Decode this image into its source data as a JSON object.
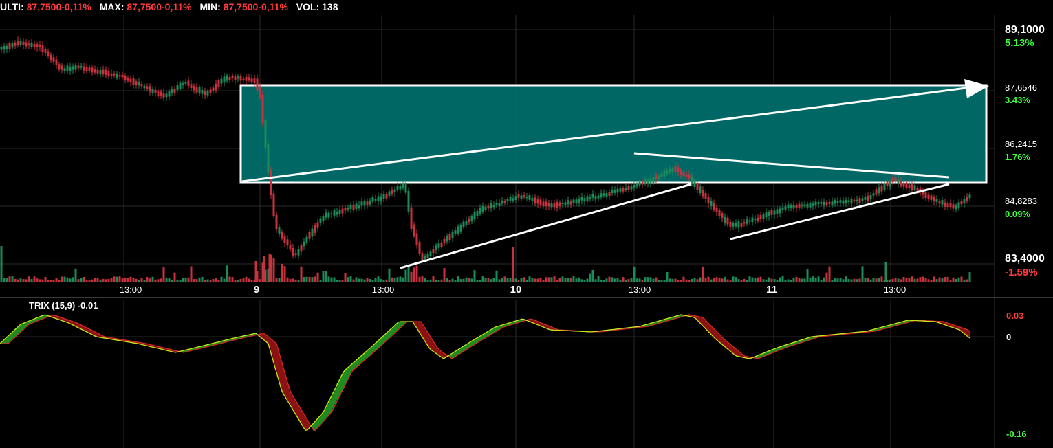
{
  "header": {
    "items": [
      {
        "label": "ULTI:",
        "value": "87,7500-0,11%"
      },
      {
        "label": "MAX:",
        "value": "87,7500-0,11%"
      },
      {
        "label": "MIN:",
        "value": "87,7500-0,11%"
      },
      {
        "label": "VOL:",
        "value": "138"
      }
    ]
  },
  "price_axis": [
    {
      "price": "89,1000",
      "pct": "5.13%",
      "pct_color": "#3cff3c",
      "emph": true
    },
    {
      "price": "87,6546",
      "pct": "3.43%",
      "pct_color": "#3cff3c",
      "emph": false
    },
    {
      "price": "86,2415",
      "pct": "1.76%",
      "pct_color": "#3cff3c",
      "emph": false
    },
    {
      "price": "84,8283",
      "pct": "0.09%",
      "pct_color": "#3cff3c",
      "emph": false
    },
    {
      "price": "83,4000",
      "pct": "-1.59%",
      "pct_color": "#ff3b3b",
      "emph": true
    }
  ],
  "time_axis": [
    "13:00",
    "9",
    "13:00",
    "10",
    "13:00",
    "11",
    "13:00"
  ],
  "trix": {
    "title": "TRIX (15,9) -0.01",
    "axis": [
      "0.03",
      "0",
      "-0.16"
    ],
    "axis_colors": [
      "#ff3b3b",
      "#ffffff",
      "#3cff3c"
    ]
  },
  "colors": {
    "up": "#1e8a5a",
    "down": "#c8323c",
    "zone": "#00706c",
    "trix_line": "#c8e61e",
    "signal_line": "#d22828",
    "grid": "#2a2a2a"
  }
}
